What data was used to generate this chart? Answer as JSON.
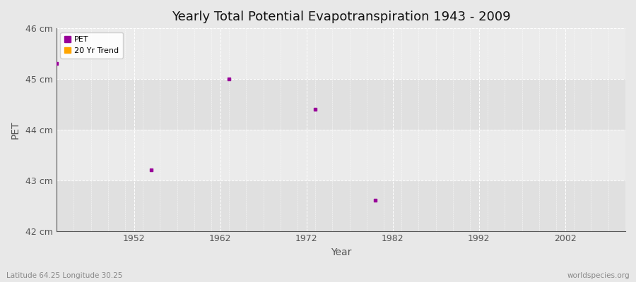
{
  "title": "Yearly Total Potential Evapotranspiration 1943 - 2009",
  "xlabel": "Year",
  "ylabel": "PET",
  "subtitle_left": "Latitude 64.25 Longitude 30.25",
  "subtitle_right": "worldspecies.org",
  "pet_data": [
    [
      1943,
      45.3
    ],
    [
      1954,
      43.2
    ],
    [
      1963,
      45.0
    ],
    [
      1973,
      44.4
    ],
    [
      1980,
      42.6
    ]
  ],
  "ylim": [
    42,
    46
  ],
  "xlim": [
    1943,
    2009
  ],
  "yticks": [
    42,
    43,
    44,
    45,
    46
  ],
  "ytick_labels": [
    "42 cm",
    "43 cm",
    "44 cm",
    "45 cm",
    "46 cm"
  ],
  "xticks": [
    1952,
    1962,
    1972,
    1982,
    1992,
    2002
  ],
  "pet_color": "#990099",
  "trend_color": "#FFA500",
  "bg_color": "#e8e8e8",
  "plot_bg_color": "#ebebeb",
  "band_color_light": "#ebebeb",
  "band_color_dark": "#e0e0e0",
  "grid_color": "#ffffff",
  "spine_color": "#555555",
  "tick_label_color": "#555555",
  "legend_labels": [
    "PET",
    "20 Yr Trend"
  ],
  "marker_size": 10
}
